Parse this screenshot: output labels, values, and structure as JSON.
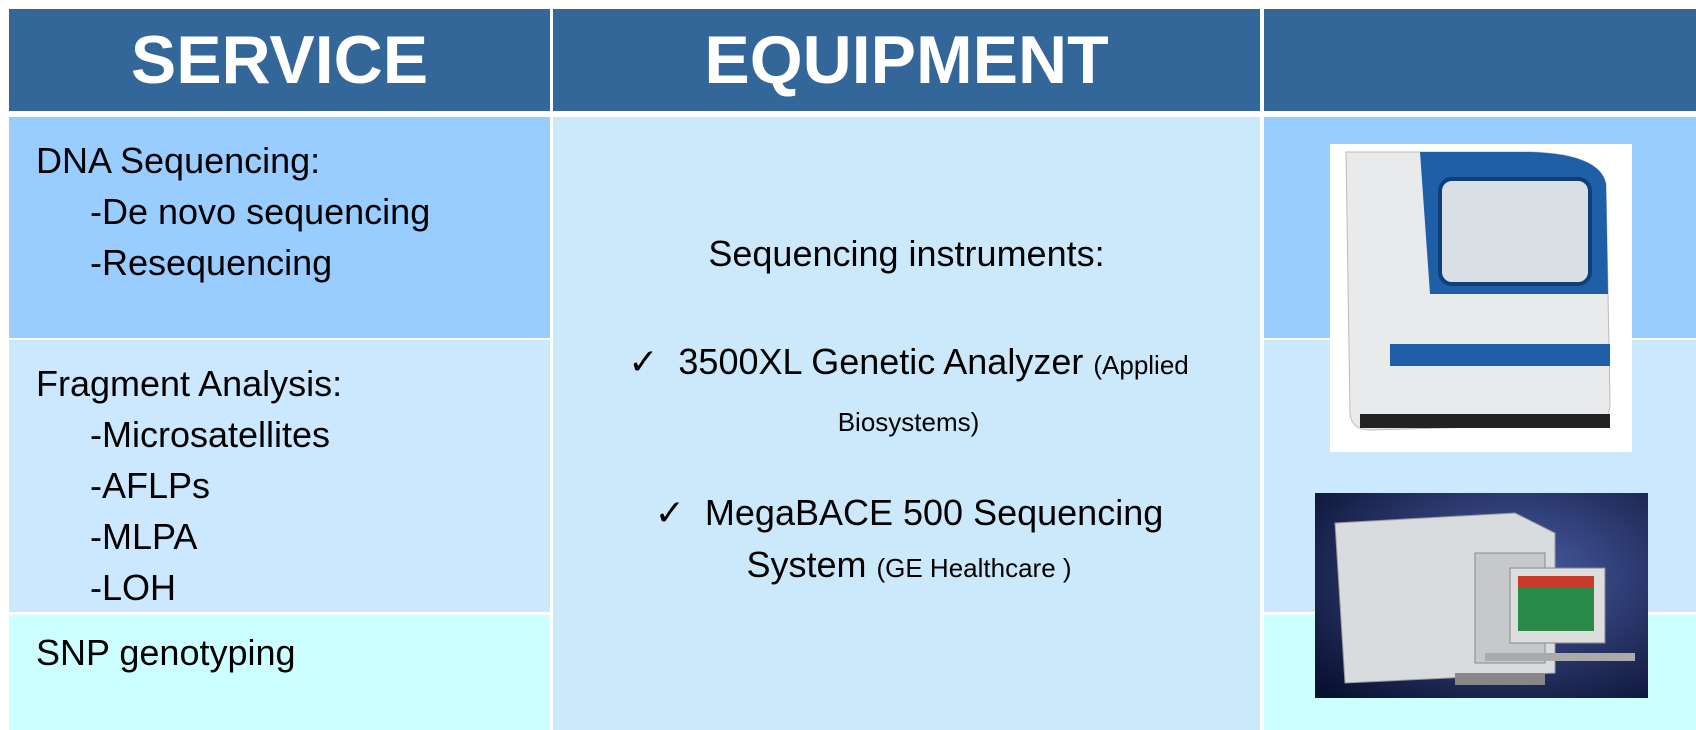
{
  "header": {
    "service": "SERVICE",
    "equipment": "EQUIPMENT"
  },
  "services": [
    {
      "title": "DNA Sequencing:",
      "items": [
        "-De novo sequencing",
        "-Resequencing"
      ]
    },
    {
      "title": "Fragment Analysis:",
      "items": [
        "-Microsatellites",
        "-AFLPs",
        "-MLPA",
        "-LOH"
      ]
    },
    {
      "title": "SNP genotyping",
      "items": []
    }
  ],
  "equipment": {
    "heading": "Sequencing instruments:",
    "bullet": "✓",
    "items": [
      {
        "name": "3500XL Genetic Analyzer",
        "maker": "(Applied Biosystems)"
      },
      {
        "name": "MegaBACE 500 Sequencing System",
        "maker": "(GE Healthcare )"
      }
    ]
  }
}
